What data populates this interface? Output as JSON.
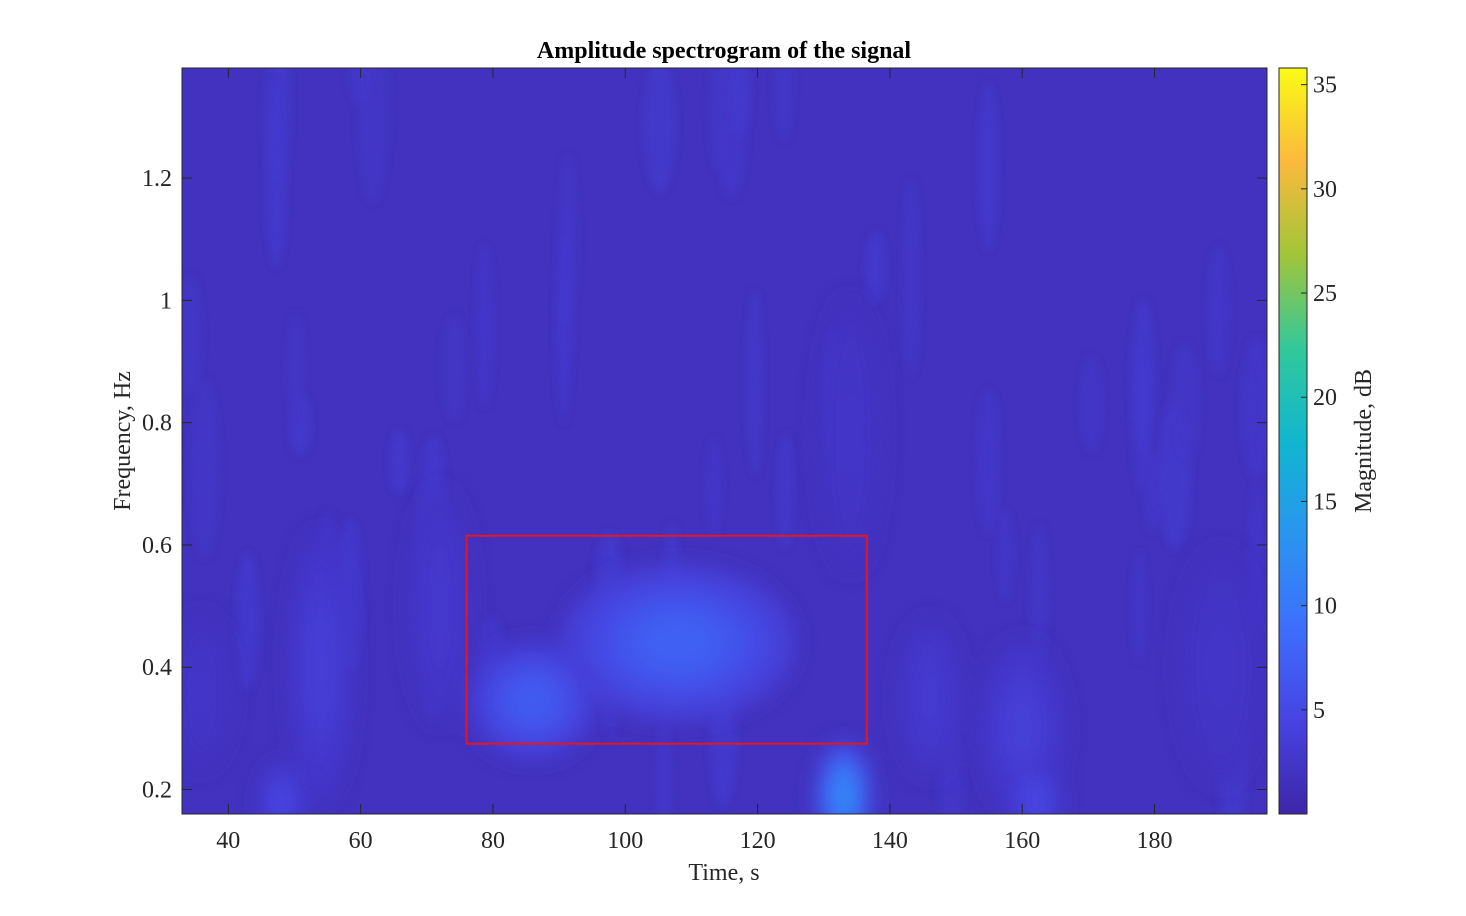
{
  "chart_data": {
    "type": "heatmap",
    "title": "Amplitude spectrogram of the signal",
    "xlabel": "Time, s",
    "ylabel": "Frequency, Hz",
    "xlim": [
      33,
      197
    ],
    "ylim": [
      0.16,
      1.38
    ],
    "xticks": [
      40,
      60,
      80,
      100,
      120,
      140,
      160,
      180
    ],
    "yticks": [
      0.2,
      0.4,
      0.6,
      0.8,
      1,
      1.2
    ],
    "colorbar": {
      "label": "Magnitude, dB",
      "range": [
        0,
        35.8
      ],
      "ticks": [
        5,
        10,
        15,
        20,
        25,
        30,
        35
      ],
      "colormap": "parula"
    },
    "background_level_db": 1.8,
    "highlight_box": {
      "x_range": [
        76,
        136.5
      ],
      "y_range": [
        0.275,
        0.615
      ],
      "color": "#e8141e"
    },
    "energy_regions": [
      {
        "t": 108,
        "f": 0.44,
        "sigma_t": 11,
        "sigma_f": 0.08,
        "db": 7.5
      },
      {
        "t": 86,
        "f": 0.345,
        "sigma_t": 6,
        "sigma_f": 0.06,
        "db": 7
      },
      {
        "t": 133,
        "f": 0.19,
        "sigma_t": 2.6,
        "sigma_f": 0.055,
        "db": 12
      },
      {
        "t": 160,
        "f": 0.3,
        "sigma_t": 4,
        "sigma_f": 0.09,
        "db": 3.8
      },
      {
        "t": 162,
        "f": 0.18,
        "sigma_t": 2.5,
        "sigma_f": 0.04,
        "db": 5
      },
      {
        "t": 146,
        "f": 0.35,
        "sigma_t": 3,
        "sigma_f": 0.08,
        "db": 3.2
      },
      {
        "t": 54,
        "f": 0.4,
        "sigma_t": 3,
        "sigma_f": 0.14,
        "db": 3.8
      },
      {
        "t": 48,
        "f": 0.18,
        "sigma_t": 2,
        "sigma_f": 0.04,
        "db": 5
      },
      {
        "t": 72,
        "f": 0.5,
        "sigma_t": 3,
        "sigma_f": 0.12,
        "db": 3
      },
      {
        "t": 36,
        "f": 0.36,
        "sigma_t": 3,
        "sigma_f": 0.08,
        "db": 2.5
      },
      {
        "t": 190,
        "f": 0.4,
        "sigma_t": 4,
        "sigma_f": 0.12,
        "db": 2.5
      },
      {
        "t": 134,
        "f": 0.78,
        "sigma_t": 3,
        "sigma_f": 0.14,
        "db": 2.5
      }
    ]
  }
}
